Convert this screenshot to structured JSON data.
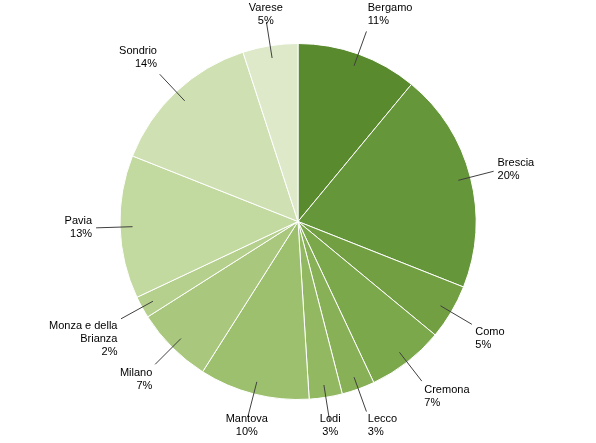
{
  "chart_data": {
    "type": "pie",
    "categories": [
      "Bergamo",
      "Brescia",
      "Como",
      "Cremona",
      "Lecco",
      "Lodi",
      "Mantova",
      "Milano",
      "Monza e della Brianza",
      "Pavia",
      "Sondrio",
      "Varese"
    ],
    "values": [
      11,
      20,
      5,
      7,
      3,
      3,
      10,
      7,
      2,
      13,
      14,
      5
    ],
    "value_labels": [
      "11%",
      "20%",
      "5%",
      "7%",
      "3%",
      "3%",
      "10%",
      "7%",
      "2%",
      "13%",
      "14%",
      "5%"
    ],
    "colors": [
      "#5a8a2e",
      "#66963a",
      "#729f42",
      "#7ca84c",
      "#87b057",
      "#92b862",
      "#9dc06e",
      "#a9c87d",
      "#b5d08d",
      "#c2d99f",
      "#cfe1b2",
      "#dde9c9"
    ],
    "data_labels": true
  }
}
